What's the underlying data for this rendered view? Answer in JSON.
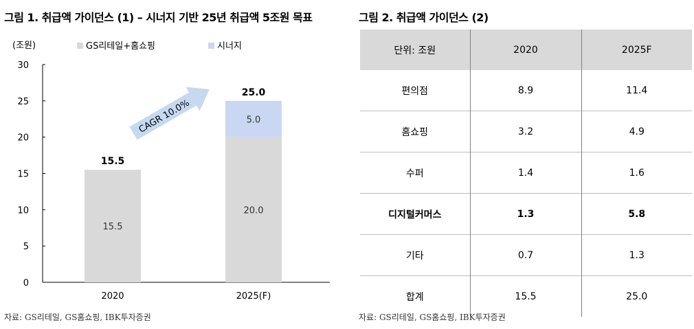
{
  "left_panel": {
    "title": "그림 1. 취급액 가이던스 (1) – 시너지 기반 25년 취급액 5조원 목표",
    "source": "자료: GS리테일, GS홈쇼핑, IBK투자증권"
  },
  "right_panel": {
    "title": "그림 2. 취급액 가이던스 (2)",
    "source": "자료: GS리테일, GS홈쇼핑, IBK투자증권",
    "table": {
      "headers": [
        "단위: 조원",
        "2020",
        "2025F"
      ],
      "rows": [
        {
          "label": "편의점",
          "v2020": "8.9",
          "v2025": "11.4",
          "bold": false
        },
        {
          "label": "홈쇼핑",
          "v2020": "3.2",
          "v2025": "4.9",
          "bold": false
        },
        {
          "label": "수퍼",
          "v2020": "1.4",
          "v2025": "1.6",
          "bold": false
        },
        {
          "label": "디지털커머스",
          "v2020": "1.3",
          "v2025": "5.8",
          "bold": true
        },
        {
          "label": "기타",
          "v2020": "0.7",
          "v2025": "1.3",
          "bold": false
        },
        {
          "label": "합계",
          "v2020": "15.5",
          "v2025": "25.0",
          "bold": false
        }
      ]
    }
  },
  "chart_data": {
    "type": "bar",
    "stacked": true,
    "categories": [
      "2020",
      "2025(F)"
    ],
    "series": [
      {
        "name": "GS리테일+홈쇼핑",
        "values": [
          15.5,
          20.0
        ],
        "labels": [
          "15.5",
          "20.0"
        ],
        "color": "#d9d9d9"
      },
      {
        "name": "시너지",
        "values": [
          0,
          5.0
        ],
        "labels": [
          "",
          "5.0"
        ],
        "color": "#c9d7f2"
      }
    ],
    "totals": [
      "15.5",
      "25.0"
    ],
    "ylabel": "(조원)",
    "ylim": [
      0,
      30
    ],
    "yticks": [
      0,
      5,
      10,
      15,
      20,
      25,
      30
    ],
    "ytick_labels": [
      "0",
      "5",
      "10",
      "15",
      "20",
      "25",
      "30"
    ],
    "annotation": "CAGR 10.0%",
    "arrow_color": "#c5d9f1",
    "legend_position": "top"
  }
}
